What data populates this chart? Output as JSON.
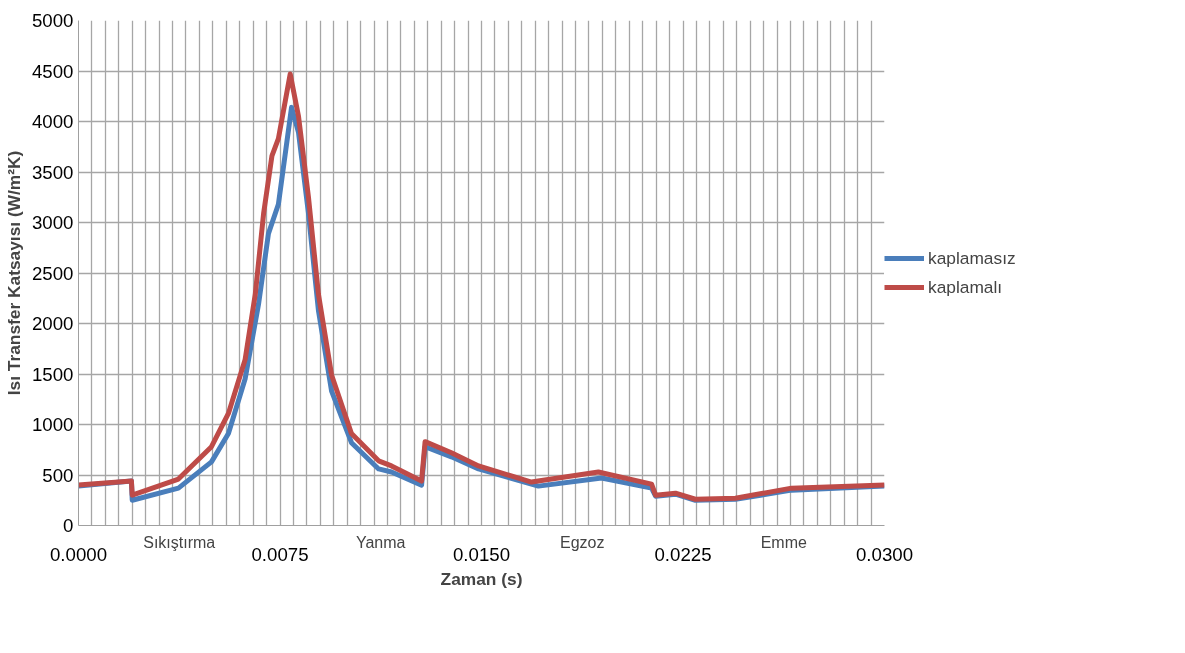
{
  "chart_data": {
    "type": "line",
    "xlabel": "Zaman (s)",
    "ylabel": "Isı Transfer Katsayısı (W/m²K)",
    "xlim": [
      0,
      0.03
    ],
    "ylim": [
      0,
      5000
    ],
    "xticks": [
      {
        "value": 0,
        "label": "0.0000"
      },
      {
        "value": 0.0005,
        "label": null
      },
      {
        "value": 0.001,
        "label": null
      },
      {
        "value": 0.0015,
        "label": null
      },
      {
        "value": 0.002,
        "label": null
      },
      {
        "value": 0.0025,
        "label": null
      },
      {
        "value": 0.003,
        "label": null
      },
      {
        "value": 0.0035,
        "label": null
      },
      {
        "value": 0.004,
        "label": null
      },
      {
        "value": 0.0045,
        "label": null
      },
      {
        "value": 0.005,
        "label": null
      },
      {
        "value": 0.0055,
        "label": null
      },
      {
        "value": 0.006,
        "label": null
      },
      {
        "value": 0.0065,
        "label": null
      },
      {
        "value": 0.007,
        "label": null
      },
      {
        "value": 0.0075,
        "label": "0.0075"
      },
      {
        "value": 0.008,
        "label": null
      },
      {
        "value": 0.0085,
        "label": null
      },
      {
        "value": 0.009,
        "label": null
      },
      {
        "value": 0.0095,
        "label": null
      },
      {
        "value": 0.01,
        "label": null
      },
      {
        "value": 0.0105,
        "label": null
      },
      {
        "value": 0.011,
        "label": null
      },
      {
        "value": 0.0115,
        "label": null
      },
      {
        "value": 0.012,
        "label": null
      },
      {
        "value": 0.0125,
        "label": null
      },
      {
        "value": 0.013,
        "label": null
      },
      {
        "value": 0.0135,
        "label": null
      },
      {
        "value": 0.014,
        "label": null
      },
      {
        "value": 0.0145,
        "label": null
      },
      {
        "value": 0.015,
        "label": "0.0150"
      },
      {
        "value": 0.0155,
        "label": null
      },
      {
        "value": 0.016,
        "label": null
      },
      {
        "value": 0.0165,
        "label": null
      },
      {
        "value": 0.017,
        "label": null
      },
      {
        "value": 0.0175,
        "label": null
      },
      {
        "value": 0.018,
        "label": null
      },
      {
        "value": 0.0185,
        "label": null
      },
      {
        "value": 0.019,
        "label": null
      },
      {
        "value": 0.0195,
        "label": null
      },
      {
        "value": 0.02,
        "label": null
      },
      {
        "value": 0.0205,
        "label": null
      },
      {
        "value": 0.021,
        "label": null
      },
      {
        "value": 0.0215,
        "label": null
      },
      {
        "value": 0.022,
        "label": null
      },
      {
        "value": 0.0225,
        "label": "0.0225"
      },
      {
        "value": 0.023,
        "label": null
      },
      {
        "value": 0.0235,
        "label": null
      },
      {
        "value": 0.024,
        "label": null
      },
      {
        "value": 0.0245,
        "label": null
      },
      {
        "value": 0.025,
        "label": null
      },
      {
        "value": 0.0255,
        "label": null
      },
      {
        "value": 0.026,
        "label": null
      },
      {
        "value": 0.0265,
        "label": null
      },
      {
        "value": 0.027,
        "label": null
      },
      {
        "value": 0.0275,
        "label": null
      },
      {
        "value": 0.028,
        "label": null
      },
      {
        "value": 0.0285,
        "label": null
      },
      {
        "value": 0.029,
        "label": null
      },
      {
        "value": 0.0295,
        "label": null
      },
      {
        "value": 0.03,
        "label": "0.0300"
      }
    ],
    "yticks": [
      0,
      500,
      1000,
      1500,
      2000,
      2500,
      3000,
      3500,
      4000,
      4500,
      5000
    ],
    "grid": true,
    "legend": "right",
    "line_style": "solid",
    "marker": "none",
    "annotations": [
      "Sıkıştırma",
      "Yanma",
      "Egzoz",
      "Emme"
    ],
    "series": [
      {
        "name": "kaplamasız",
        "color": "#4a7ebb",
        "x": [
          0,
          0.00197,
          0.002,
          0.00372,
          0.00495,
          0.00558,
          0.0062,
          0.0067,
          0.00707,
          0.00744,
          0.00793,
          0.00819,
          0.00856,
          0.00893,
          0.00942,
          0.01016,
          0.01117,
          0.01165,
          0.01277,
          0.0129,
          0.01388,
          0.01489,
          0.01712,
          0.01947,
          0.02133,
          0.02148,
          0.02222,
          0.02296,
          0.02445,
          0.02654,
          0.03
        ],
        "values": [
          390,
          440,
          250,
          370,
          630,
          910,
          1450,
          2190,
          2890,
          3180,
          4140,
          3890,
          3090,
          2130,
          1330,
          820,
          560,
          530,
          400,
          780,
          680,
          560,
          390,
          470,
          370,
          290,
          310,
          250,
          260,
          350,
          390
        ]
      },
      {
        "name": "kaplamalı",
        "color": "#be4b48",
        "x": [
          0,
          0.00197,
          0.002,
          0.00372,
          0.00495,
          0.00558,
          0.0062,
          0.00658,
          0.00689,
          0.0072,
          0.00744,
          0.00788,
          0.00819,
          0.00856,
          0.00893,
          0.00942,
          0.01016,
          0.01117,
          0.01165,
          0.01277,
          0.0129,
          0.01388,
          0.01489,
          0.01686,
          0.01935,
          0.02133,
          0.02148,
          0.02222,
          0.02296,
          0.02445,
          0.02654,
          0.03
        ],
        "values": [
          400,
          440,
          300,
          460,
          780,
          1110,
          1640,
          2290,
          3090,
          3660,
          3830,
          4470,
          4050,
          3250,
          2290,
          1490,
          910,
          640,
          590,
          440,
          830,
          720,
          590,
          430,
          530,
          410,
          300,
          320,
          260,
          270,
          370,
          400
        ]
      }
    ]
  }
}
